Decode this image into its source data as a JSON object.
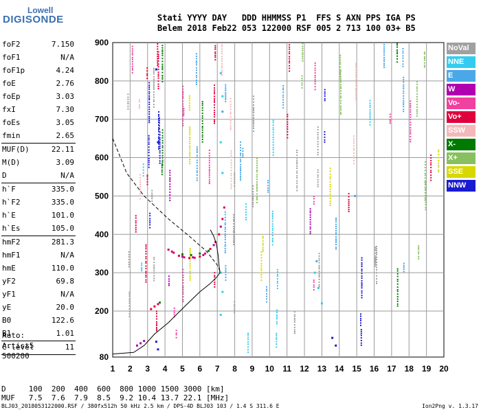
{
  "logo": {
    "line1": "Lowell",
    "line2": "DIGISONDE"
  },
  "header": {
    "line1": "Stati YYYY DAY   DDD HHMMSS P1  FFS S AXN PPS IGA PS",
    "line2": "Belem 2018 Feb22 053 122000 RSF 005 2 713 100 03+ B5"
  },
  "params": [
    {
      "label": "foF2",
      "value": "7.150"
    },
    {
      "label": "foF1",
      "value": "N/A"
    },
    {
      "label": "foF1p",
      "value": "4.24"
    },
    {
      "label": "foE",
      "value": "2.76"
    },
    {
      "label": "foEp",
      "value": "3.03"
    },
    {
      "label": "fxI",
      "value": "7.30"
    },
    {
      "label": "foEs",
      "value": "3.05"
    },
    {
      "label": "fmin",
      "value": "2.65"
    },
    {
      "sep": true
    },
    {
      "label": "MUF(D)",
      "value": "22.11"
    },
    {
      "label": "M(D)",
      "value": "3.09"
    },
    {
      "label": "D",
      "value": "N/A"
    },
    {
      "sep": true
    },
    {
      "label": "h`F",
      "value": "335.0"
    },
    {
      "label": "h`F2",
      "value": "335.0"
    },
    {
      "label": "h`E",
      "value": "101.0"
    },
    {
      "label": "h`Es",
      "value": "105.0"
    },
    {
      "sep": true
    },
    {
      "label": "hmF2",
      "value": "281.3"
    },
    {
      "label": "hmF1",
      "value": "N/A"
    },
    {
      "label": "hmE",
      "value": "110.0"
    },
    {
      "label": "yF2",
      "value": "69.8"
    },
    {
      "label": "yF1",
      "value": "N/A"
    },
    {
      "label": "yE",
      "value": "20.0"
    },
    {
      "label": "B0",
      "value": "122.6"
    },
    {
      "label": "B1",
      "value": "1.01"
    },
    {
      "sep": true
    },
    {
      "label": "C-level",
      "value": "11"
    },
    {
      "sep": true
    }
  ],
  "artist": {
    "line1": "Auto:",
    "line2": "Artist5",
    "line3": "500200"
  },
  "legend": [
    {
      "label": "NoVal",
      "color": "#a0a0a0"
    },
    {
      "label": "NNE",
      "color": "#33ccf0"
    },
    {
      "label": "E",
      "color": "#4aa8e8"
    },
    {
      "label": "W",
      "color": "#b000b0"
    },
    {
      "label": "Vo-",
      "color": "#f040a0"
    },
    {
      "label": "Vo+",
      "color": "#e0003c"
    },
    {
      "label": "SSW",
      "color": "#f5b8b8"
    },
    {
      "label": "X-",
      "color": "#007a00"
    },
    {
      "label": "X+",
      "color": "#88c060"
    },
    {
      "label": "SSE",
      "color": "#d8d800"
    },
    {
      "label": "NNW",
      "color": "#1a1ad0"
    }
  ],
  "dmuf": {
    "d_line": "D     100  200  400  600  800 1000 1500 3000 [km]",
    "muf_line": "MUF   7.5  7.6  7.9  8.5  9.2 10.4 13.7 22.1 [MHz]"
  },
  "footer": "BLJ03_2018053122000.RSF / 380fx512h 50 kHz 2.5 km / DPS-4D BLJ03 103 / 1.4 S 311.6 E",
  "version": "Ion2Png v. 1.3.17",
  "chart_data": {
    "type": "scatter",
    "title": "",
    "xlabel": "",
    "ylabel": "",
    "xlim": [
      1,
      20
    ],
    "ylim": [
      80,
      900
    ],
    "xticks": [
      1,
      2,
      3,
      4,
      5,
      6,
      7,
      8,
      9,
      10,
      11,
      12,
      13,
      14,
      15,
      16,
      17,
      18,
      19,
      20
    ],
    "yticks": [
      80,
      200,
      300,
      400,
      500,
      600,
      700,
      800,
      900
    ],
    "grid": true,
    "legend_placement": "right",
    "profile_line": [
      [
        1,
        88
      ],
      [
        2.2,
        92
      ],
      [
        2.8,
        110
      ],
      [
        3.4,
        140
      ],
      [
        4.2,
        170
      ],
      [
        5.2,
        215
      ],
      [
        6.0,
        250
      ],
      [
        6.6,
        272
      ],
      [
        7.0,
        290
      ],
      [
        7.15,
        300
      ],
      [
        7.1,
        320
      ],
      [
        7.05,
        345
      ],
      [
        6.95,
        375
      ],
      [
        6.8,
        395
      ],
      [
        6.6,
        412
      ]
    ],
    "dashed_line": [
      [
        1,
        650
      ],
      [
        1.8,
        560
      ],
      [
        2.8,
        500
      ],
      [
        4.2,
        440
      ],
      [
        5.4,
        395
      ],
      [
        6.4,
        355
      ],
      [
        7.0,
        320
      ],
      [
        7.2,
        300
      ]
    ],
    "trace_points": {
      "Vo+": [
        [
          4.2,
          360
        ],
        [
          4.5,
          352
        ],
        [
          4.8,
          344
        ],
        [
          5.1,
          340
        ],
        [
          5.4,
          338
        ],
        [
          5.7,
          339
        ],
        [
          6.0,
          342
        ],
        [
          6.3,
          350
        ],
        [
          6.6,
          362
        ],
        [
          6.9,
          380
        ],
        [
          7.1,
          400
        ],
        [
          7.3,
          440
        ],
        [
          7.4,
          470
        ],
        [
          3.2,
          205
        ],
        [
          3.4,
          212
        ],
        [
          3.6,
          218
        ]
      ],
      "W": [
        [
          4.4,
          355
        ],
        [
          5.0,
          342
        ],
        [
          5.6,
          340
        ],
        [
          6.2,
          346
        ],
        [
          6.8,
          372
        ],
        [
          7.2,
          420
        ],
        [
          2.4,
          110
        ],
        [
          2.6,
          116
        ],
        [
          2.8,
          122
        ]
      ],
      "X-": [
        [
          5.0,
          348
        ],
        [
          5.5,
          346
        ],
        [
          6.0,
          350
        ],
        [
          6.5,
          357
        ],
        [
          3.7,
          222
        ]
      ],
      "NNE": [
        [
          7.2,
          820
        ],
        [
          7.3,
          760
        ],
        [
          7.2,
          640
        ],
        [
          7.3,
          560
        ],
        [
          7.2,
          300
        ],
        [
          7.3,
          250
        ],
        [
          7.2,
          190
        ],
        [
          12.6,
          300
        ],
        [
          12.8,
          260
        ],
        [
          13.0,
          220
        ]
      ],
      "E": [
        [
          7.3,
          720
        ],
        [
          12.7,
          330
        ],
        [
          14.9,
          500
        ]
      ],
      "NNW": [
        [
          3.5,
          830
        ],
        [
          3.6,
          640
        ],
        [
          3.5,
          120
        ],
        [
          3.6,
          100
        ],
        [
          13.6,
          130
        ],
        [
          13.8,
          110
        ]
      ]
    }
  }
}
